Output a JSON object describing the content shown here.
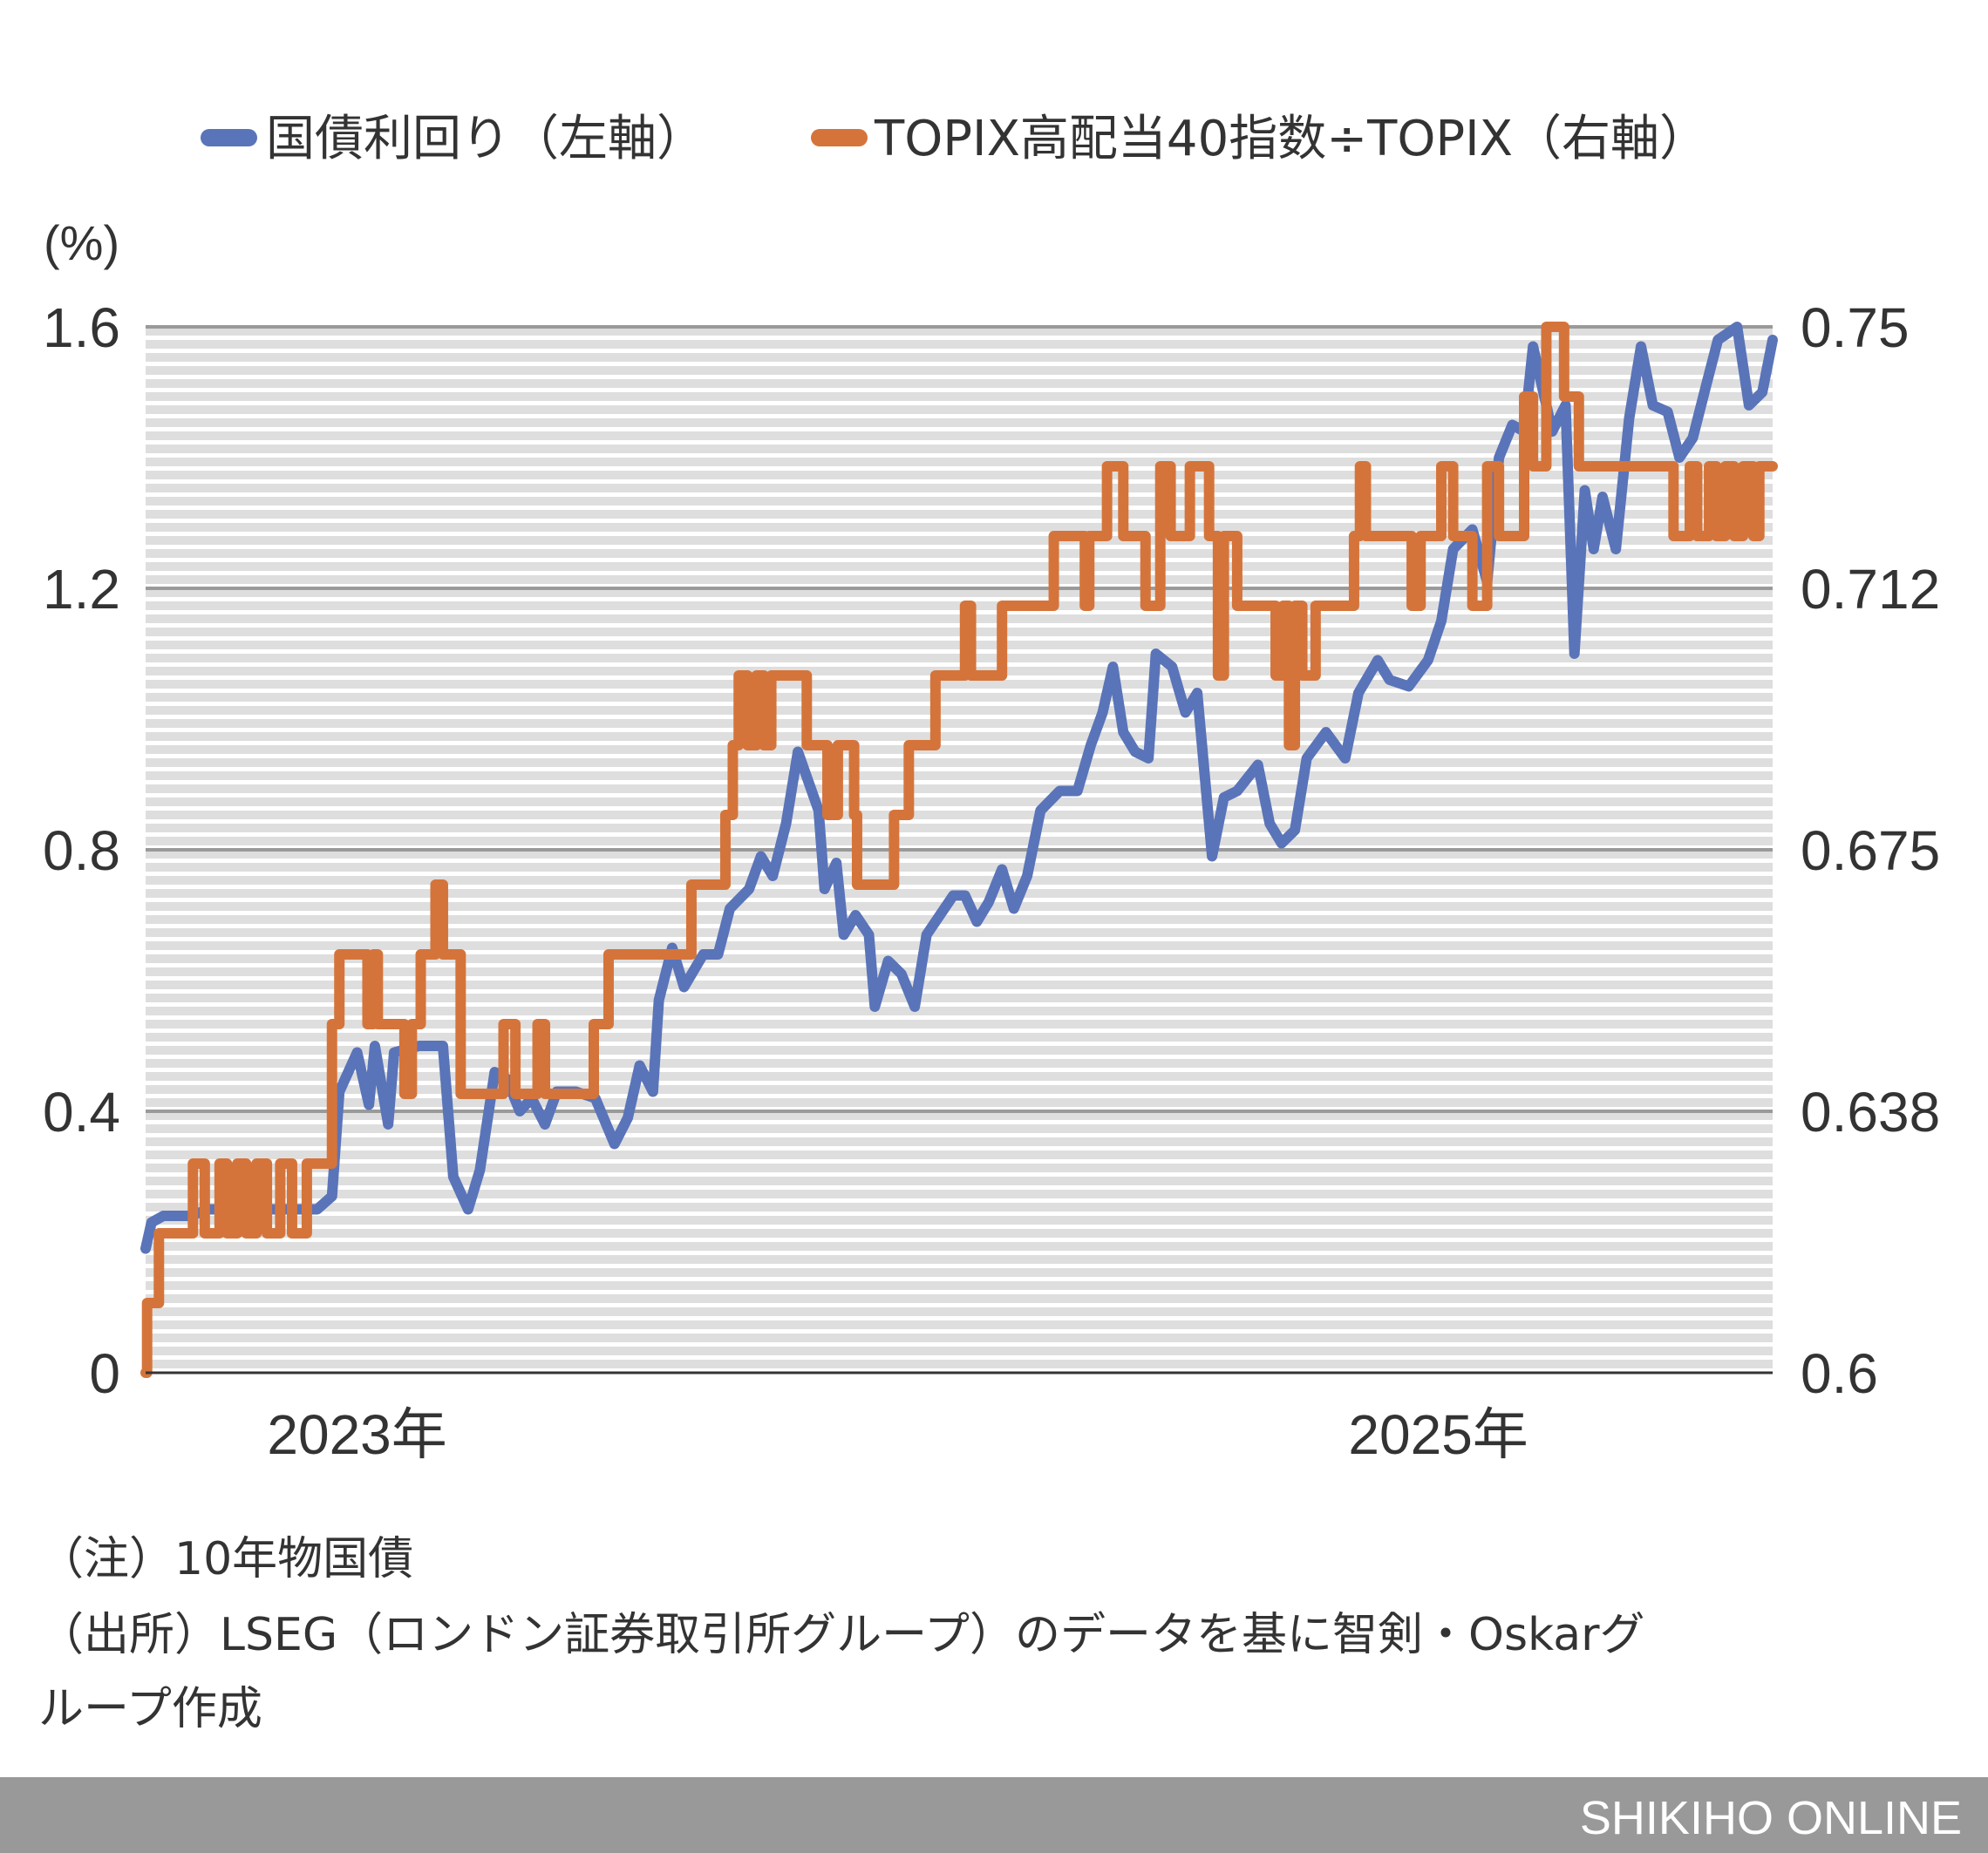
{
  "chart_data": {
    "type": "line",
    "legend_position": "top",
    "grid": true,
    "y_left": {
      "label": "(%)",
      "ylim": [
        0,
        1.6
      ],
      "ticks": [
        "0",
        "0.4",
        "0.8",
        "1.2",
        "1.6"
      ]
    },
    "y_right": {
      "ylim": [
        0.6,
        0.75
      ],
      "ticks": [
        "0.6",
        "0.638",
        "0.675",
        "0.712",
        "0.75"
      ]
    },
    "x": {
      "range": [
        "2022-08-11",
        "2025-08-15"
      ],
      "ticks": [
        {
          "date": "2023-01-01",
          "label": "2023年"
        },
        {
          "date": "2025-01-01",
          "label": "2025年"
        }
      ]
    },
    "series": [
      {
        "name": "国債利回り（左軸）",
        "axis": "left",
        "color": "#5a74b9",
        "step": false,
        "points": [
          [
            "2022-08-11",
            0.19
          ],
          [
            "2022-08-15",
            0.23
          ],
          [
            "2022-08-23",
            0.24
          ],
          [
            "2022-09-10",
            0.24
          ],
          [
            "2022-09-23",
            0.25
          ],
          [
            "2022-10-23",
            0.25
          ],
          [
            "2022-12-05",
            0.25
          ],
          [
            "2022-12-15",
            0.27
          ],
          [
            "2022-12-20",
            0.43
          ],
          [
            "2023-01-01",
            0.49
          ],
          [
            "2023-01-09",
            0.41
          ],
          [
            "2023-01-13",
            0.5
          ],
          [
            "2023-01-22",
            0.38
          ],
          [
            "2023-01-26",
            0.49
          ],
          [
            "2023-02-12",
            0.5
          ],
          [
            "2023-02-28",
            0.5
          ],
          [
            "2023-03-07",
            0.3
          ],
          [
            "2023-03-13",
            0.27
          ],
          [
            "2023-03-17",
            0.25
          ],
          [
            "2023-03-25",
            0.31
          ],
          [
            "2023-04-04",
            0.46
          ],
          [
            "2023-04-12",
            0.45
          ],
          [
            "2023-04-21",
            0.4
          ],
          [
            "2023-04-29",
            0.42
          ],
          [
            "2023-05-08",
            0.38
          ],
          [
            "2023-05-16",
            0.43
          ],
          [
            "2023-05-29",
            0.43
          ],
          [
            "2023-06-11",
            0.42
          ],
          [
            "2023-06-24",
            0.35
          ],
          [
            "2023-07-03",
            0.39
          ],
          [
            "2023-07-11",
            0.47
          ],
          [
            "2023-07-20",
            0.43
          ],
          [
            "2023-07-24",
            0.57
          ],
          [
            "2023-08-02",
            0.65
          ],
          [
            "2023-08-10",
            0.59
          ],
          [
            "2023-08-23",
            0.64
          ],
          [
            "2023-09-02",
            0.64
          ],
          [
            "2023-09-10",
            0.71
          ],
          [
            "2023-09-23",
            0.74
          ],
          [
            "2023-10-01",
            0.79
          ],
          [
            "2023-10-09",
            0.76
          ],
          [
            "2023-10-18",
            0.84
          ],
          [
            "2023-10-26",
            0.95
          ],
          [
            "2023-11-09",
            0.86
          ],
          [
            "2023-11-13",
            0.74
          ],
          [
            "2023-11-21",
            0.78
          ],
          [
            "2023-11-26",
            0.67
          ],
          [
            "2023-12-04",
            0.7
          ],
          [
            "2023-12-13",
            0.67
          ],
          [
            "2023-12-17",
            0.56
          ],
          [
            "2023-12-26",
            0.63
          ],
          [
            "2024-01-04",
            0.61
          ],
          [
            "2024-01-13",
            0.56
          ],
          [
            "2024-01-21",
            0.67
          ],
          [
            "2024-01-30",
            0.7
          ],
          [
            "2024-02-08",
            0.73
          ],
          [
            "2024-02-16",
            0.73
          ],
          [
            "2024-02-24",
            0.69
          ],
          [
            "2024-03-03",
            0.72
          ],
          [
            "2024-03-12",
            0.77
          ],
          [
            "2024-03-20",
            0.71
          ],
          [
            "2024-03-29",
            0.76
          ],
          [
            "2024-04-07",
            0.86
          ],
          [
            "2024-04-20",
            0.89
          ],
          [
            "2024-05-02",
            0.89
          ],
          [
            "2024-05-11",
            0.96
          ],
          [
            "2024-05-19",
            1.01
          ],
          [
            "2024-05-26",
            1.08
          ],
          [
            "2024-06-02",
            0.98
          ],
          [
            "2024-06-10",
            0.95
          ],
          [
            "2024-06-19",
            0.94
          ],
          [
            "2024-06-24",
            1.1
          ],
          [
            "2024-07-05",
            1.08
          ],
          [
            "2024-07-14",
            1.01
          ],
          [
            "2024-07-22",
            1.04
          ],
          [
            "2024-08-01",
            0.79
          ],
          [
            "2024-08-09",
            0.88
          ],
          [
            "2024-08-18",
            0.89
          ],
          [
            "2024-09-01",
            0.93
          ],
          [
            "2024-09-09",
            0.84
          ],
          [
            "2024-09-17",
            0.81
          ],
          [
            "2024-09-26",
            0.83
          ],
          [
            "2024-10-04",
            0.94
          ],
          [
            "2024-10-17",
            0.98
          ],
          [
            "2024-10-30",
            0.94
          ],
          [
            "2024-11-08",
            1.04
          ],
          [
            "2024-11-21",
            1.09
          ],
          [
            "2024-11-29",
            1.06
          ],
          [
            "2024-12-12",
            1.05
          ],
          [
            "2024-12-25",
            1.09
          ],
          [
            "2025-01-03",
            1.15
          ],
          [
            "2025-01-11",
            1.26
          ],
          [
            "2025-01-24",
            1.29
          ],
          [
            "2025-02-03",
            1.21
          ],
          [
            "2025-02-11",
            1.4
          ],
          [
            "2025-02-20",
            1.45
          ],
          [
            "2025-02-28",
            1.44
          ],
          [
            "2025-03-06",
            1.57
          ],
          [
            "2025-03-11",
            1.52
          ],
          [
            "2025-03-19",
            1.44
          ],
          [
            "2025-03-28",
            1.48
          ],
          [
            "2025-04-03",
            1.1
          ],
          [
            "2025-04-10",
            1.35
          ],
          [
            "2025-04-16",
            1.26
          ],
          [
            "2025-04-22",
            1.34
          ],
          [
            "2025-05-01",
            1.26
          ],
          [
            "2025-05-10",
            1.46
          ],
          [
            "2025-05-18",
            1.57
          ],
          [
            "2025-05-26",
            1.48
          ],
          [
            "2025-06-05",
            1.47
          ],
          [
            "2025-06-13",
            1.4
          ],
          [
            "2025-06-22",
            1.43
          ],
          [
            "2025-07-01",
            1.51
          ],
          [
            "2025-07-09",
            1.58
          ],
          [
            "2025-07-22",
            1.6
          ],
          [
            "2025-07-30",
            1.48
          ],
          [
            "2025-08-08",
            1.5
          ],
          [
            "2025-08-15",
            1.58
          ]
        ]
      },
      {
        "name": "TOPIX高配当40指数÷TOPIX（右軸）",
        "axis": "right",
        "color": "#d5743a",
        "step": true,
        "points": [
          [
            "2022-08-11",
            0.6
          ],
          [
            "2022-08-12",
            0.61
          ],
          [
            "2022-08-20",
            0.62
          ],
          [
            "2022-09-12",
            0.63
          ],
          [
            "2022-09-20",
            0.62
          ],
          [
            "2022-09-30",
            0.63
          ],
          [
            "2022-10-05",
            0.62
          ],
          [
            "2022-10-12",
            0.63
          ],
          [
            "2022-10-18",
            0.62
          ],
          [
            "2022-10-25",
            0.63
          ],
          [
            "2022-11-01",
            0.62
          ],
          [
            "2022-11-10",
            0.63
          ],
          [
            "2022-11-18",
            0.62
          ],
          [
            "2022-11-28",
            0.63
          ],
          [
            "2022-12-15",
            0.65
          ],
          [
            "2022-12-20",
            0.66
          ],
          [
            "2023-01-08",
            0.65
          ],
          [
            "2023-01-12",
            0.66
          ],
          [
            "2023-01-15",
            0.65
          ],
          [
            "2023-02-02",
            0.64
          ],
          [
            "2023-02-07",
            0.65
          ],
          [
            "2023-02-13",
            0.66
          ],
          [
            "2023-02-23",
            0.67
          ],
          [
            "2023-02-28",
            0.66
          ],
          [
            "2023-03-12",
            0.64
          ],
          [
            "2023-04-10",
            0.65
          ],
          [
            "2023-04-18",
            0.64
          ],
          [
            "2023-05-03",
            0.65
          ],
          [
            "2023-05-08",
            0.64
          ],
          [
            "2023-06-10",
            0.65
          ],
          [
            "2023-06-20",
            0.66
          ],
          [
            "2023-08-15",
            0.67
          ],
          [
            "2023-09-07",
            0.68
          ],
          [
            "2023-09-12",
            0.69
          ],
          [
            "2023-09-16",
            0.7
          ],
          [
            "2023-09-22",
            0.69
          ],
          [
            "2023-09-28",
            0.7
          ],
          [
            "2023-10-03",
            0.69
          ],
          [
            "2023-10-08",
            0.7
          ],
          [
            "2023-11-01",
            0.69
          ],
          [
            "2023-11-15",
            0.68
          ],
          [
            "2023-11-22",
            0.69
          ],
          [
            "2023-12-03",
            0.68
          ],
          [
            "2023-12-05",
            0.67
          ],
          [
            "2023-12-30",
            0.68
          ],
          [
            "2024-01-09",
            0.69
          ],
          [
            "2024-01-27",
            0.7
          ],
          [
            "2024-02-16",
            0.71
          ],
          [
            "2024-02-20",
            0.7
          ],
          [
            "2024-03-12",
            0.71
          ],
          [
            "2024-04-16",
            0.72
          ],
          [
            "2024-05-07",
            0.71
          ],
          [
            "2024-05-10",
            0.72
          ],
          [
            "2024-05-22",
            0.73
          ],
          [
            "2024-06-02",
            0.72
          ],
          [
            "2024-06-17",
            0.71
          ],
          [
            "2024-06-27",
            0.73
          ],
          [
            "2024-07-04",
            0.72
          ],
          [
            "2024-07-17",
            0.73
          ],
          [
            "2024-07-30",
            0.72
          ],
          [
            "2024-08-05",
            0.7
          ],
          [
            "2024-08-09",
            0.72
          ],
          [
            "2024-08-18",
            0.71
          ],
          [
            "2024-09-13",
            0.7
          ],
          [
            "2024-09-18",
            0.71
          ],
          [
            "2024-09-22",
            0.69
          ],
          [
            "2024-09-26",
            0.71
          ],
          [
            "2024-10-01",
            0.7
          ],
          [
            "2024-10-10",
            0.71
          ],
          [
            "2024-11-05",
            0.72
          ],
          [
            "2024-11-09",
            0.73
          ],
          [
            "2024-11-13",
            0.72
          ],
          [
            "2024-12-14",
            0.71
          ],
          [
            "2024-12-20",
            0.72
          ],
          [
            "2025-01-03",
            0.73
          ],
          [
            "2025-01-11",
            0.72
          ],
          [
            "2025-01-24",
            0.71
          ],
          [
            "2025-02-03",
            0.73
          ],
          [
            "2025-02-11",
            0.72
          ],
          [
            "2025-02-28",
            0.74
          ],
          [
            "2025-03-06",
            0.73
          ],
          [
            "2025-03-15",
            0.75
          ],
          [
            "2025-03-27",
            0.74
          ],
          [
            "2025-04-06",
            0.73
          ],
          [
            "2025-06-09",
            0.72
          ],
          [
            "2025-06-20",
            0.73
          ],
          [
            "2025-06-25",
            0.72
          ],
          [
            "2025-07-03",
            0.73
          ],
          [
            "2025-07-08",
            0.72
          ],
          [
            "2025-07-14",
            0.73
          ],
          [
            "2025-07-20",
            0.72
          ],
          [
            "2025-07-26",
            0.73
          ],
          [
            "2025-08-02",
            0.72
          ],
          [
            "2025-08-06",
            0.73
          ],
          [
            "2025-08-15",
            0.73
          ]
        ]
      }
    ]
  },
  "legend": {
    "items": [
      "国債利回り（左軸）",
      "TOPIX高配当40指数÷TOPIX（右軸）"
    ]
  },
  "notes": [
    "（注）10年物国債",
    "（出所）LSEG（ロンドン証券取引所グループ）のデータを基に智剣・Oskarグ",
    "ループ作成"
  ],
  "footer": {
    "brand": "SHIKIHO ONLINE"
  }
}
